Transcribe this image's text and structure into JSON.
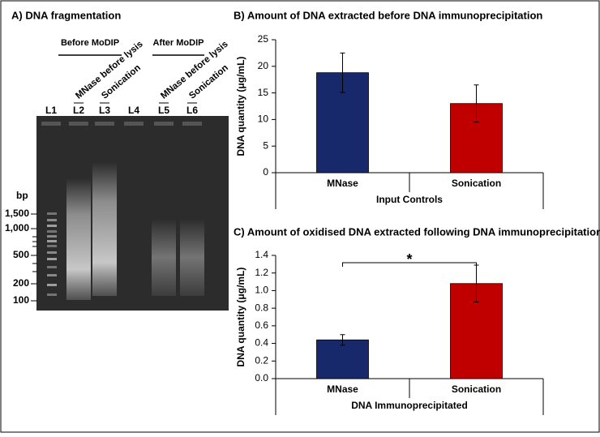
{
  "gel": {
    "title": "A) DNA fragmentation",
    "groups": [
      "Before MoDIP",
      "After MoDIP"
    ],
    "sample_labels": [
      {
        "text": "MNase before lysis",
        "color": "#1f2f7a"
      },
      {
        "text": "Sonication",
        "color": "#c00000"
      },
      {
        "text": "MNase before lysis",
        "color": "#1f2f7a"
      },
      {
        "text": "Sonication",
        "color": "#c00000"
      }
    ],
    "lanes": [
      "L1",
      "L2",
      "L3",
      "L4",
      "L5",
      "L6"
    ],
    "ladder_unit": "bp",
    "ladder_labels": [
      "1,500",
      "1,000",
      "500",
      "200",
      "100"
    ]
  },
  "chart_data": [
    {
      "type": "bar",
      "title": "B) Amount of DNA extracted before DNA immunoprecipitation",
      "y_label": "DNA quantity (μg/mL)",
      "x_label": "Input Controls",
      "categories": [
        "MNase",
        "Sonication"
      ],
      "values": [
        18.8,
        13.0
      ],
      "errors": [
        3.7,
        3.5
      ],
      "colors": [
        "#17296b",
        "#c00000"
      ],
      "ylim": [
        0,
        25
      ],
      "yticks": [
        0,
        5,
        10,
        15,
        20,
        25
      ]
    },
    {
      "type": "bar",
      "title": "C) Amount of oxidised DNA extracted following DNA immunoprecipitation",
      "y_label": "DNA quantity (μg/mL)",
      "x_label": "DNA Immunoprecipitated",
      "categories": [
        "MNase",
        "Sonication"
      ],
      "values": [
        0.44,
        1.08
      ],
      "errors": [
        0.06,
        0.21
      ],
      "colors": [
        "#17296b",
        "#c00000"
      ],
      "ylim": [
        0,
        1.4
      ],
      "yticks": [
        {
          "value": 0,
          "label": "0.0"
        },
        0.2,
        0.4,
        0.6,
        0.8,
        {
          "value": 1,
          "label": "1.0"
        },
        1.2,
        1.4
      ],
      "annotation": "*"
    }
  ]
}
